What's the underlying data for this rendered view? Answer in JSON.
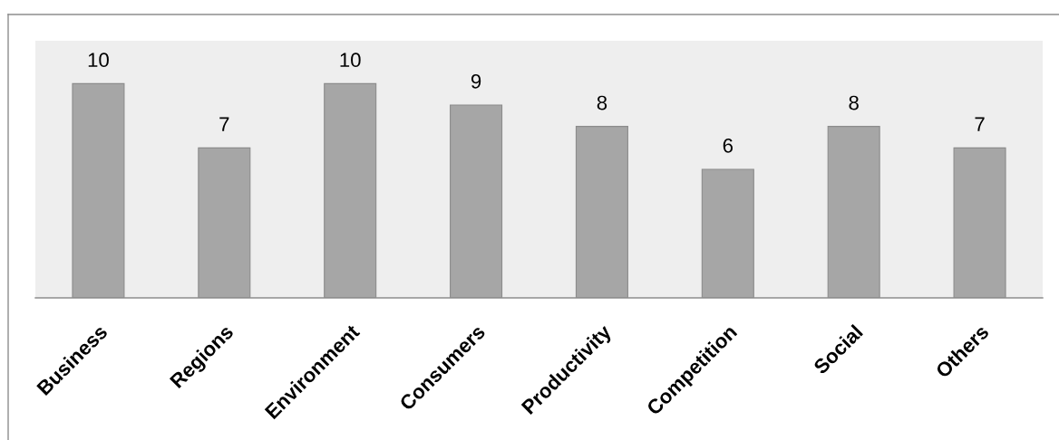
{
  "chart_data": {
    "type": "bar",
    "categories": [
      "Business",
      "Regions",
      "Environment",
      "Consumers",
      "Productivity",
      "Competition",
      "Social",
      "Others"
    ],
    "values": [
      10,
      7,
      10,
      9,
      8,
      6,
      8,
      7
    ],
    "color": "#a6a6a6",
    "data_labels": true,
    "tick_labels": "x"
  }
}
